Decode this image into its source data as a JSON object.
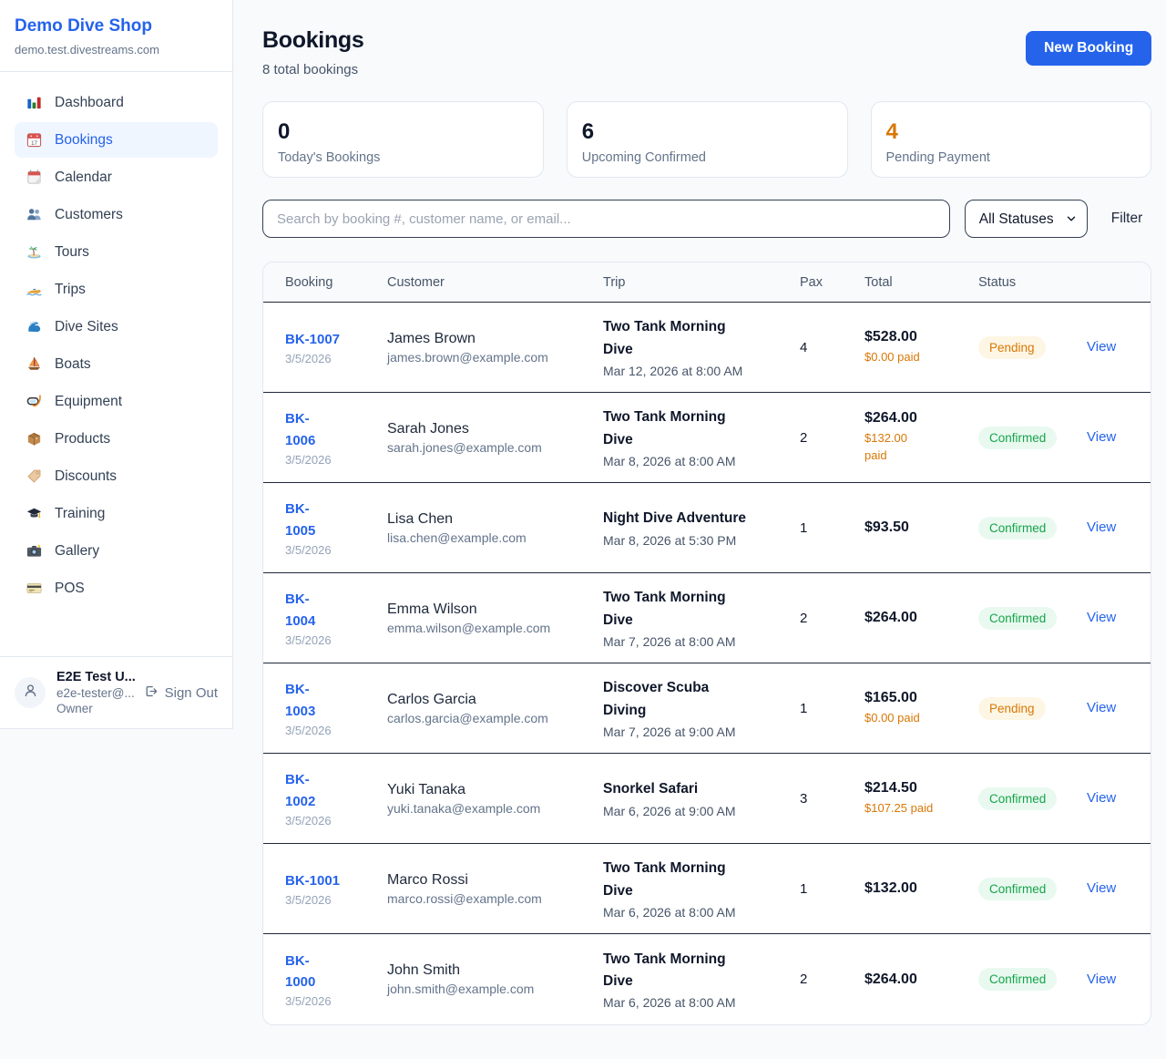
{
  "sidebar": {
    "shop_name": "Demo Dive Shop",
    "domain": "demo.test.divestreams.com",
    "items": [
      {
        "key": "dashboard",
        "label": "Dashboard",
        "active": false
      },
      {
        "key": "bookings",
        "label": "Bookings",
        "active": true
      },
      {
        "key": "calendar",
        "label": "Calendar",
        "active": false
      },
      {
        "key": "customers",
        "label": "Customers",
        "active": false
      },
      {
        "key": "tours",
        "label": "Tours",
        "active": false
      },
      {
        "key": "trips",
        "label": "Trips",
        "active": false
      },
      {
        "key": "dive-sites",
        "label": "Dive Sites",
        "active": false
      },
      {
        "key": "boats",
        "label": "Boats",
        "active": false
      },
      {
        "key": "equipment",
        "label": "Equipment",
        "active": false
      },
      {
        "key": "products",
        "label": "Products",
        "active": false
      },
      {
        "key": "discounts",
        "label": "Discounts",
        "active": false
      },
      {
        "key": "training",
        "label": "Training",
        "active": false
      },
      {
        "key": "gallery",
        "label": "Gallery",
        "active": false
      },
      {
        "key": "pos",
        "label": "POS",
        "active": false
      }
    ],
    "user": {
      "name": "E2E Test U...",
      "email": "e2e-tester@...",
      "role": "Owner",
      "sign_out_label": "Sign Out"
    }
  },
  "header": {
    "title": "Bookings",
    "subtitle": "8 total bookings",
    "new_booking_label": "New Booking"
  },
  "stats": [
    {
      "value": "0",
      "label": "Today's Bookings",
      "value_color": "#0F172A"
    },
    {
      "value": "6",
      "label": "Upcoming Confirmed",
      "value_color": "#0F172A"
    },
    {
      "value": "4",
      "label": "Pending Payment",
      "value_color": "#D97706"
    }
  ],
  "controls": {
    "search_placeholder": "Search by booking #, customer name, or email...",
    "status_filter_selected": "All Statuses",
    "filter_label": "Filter"
  },
  "table": {
    "headers": [
      "Booking",
      "Customer",
      "Trip",
      "Pax",
      "Total",
      "Status"
    ],
    "view_label": "View",
    "rows": [
      {
        "id": "BK-1007",
        "date": "3/5/2026",
        "customer": "James Brown",
        "email": "james.brown@example.com",
        "trip": "Two Tank Morning Dive",
        "trip_datetime": "Mar 12, 2026 at 8:00 AM",
        "pax": "4",
        "total": "$528.00",
        "paid": "$0.00 paid",
        "status": "Pending"
      },
      {
        "id": "BK-1006",
        "date": "3/5/2026",
        "customer": "Sarah Jones",
        "email": "sarah.jones@example.com",
        "trip": "Two Tank Morning Dive",
        "trip_datetime": "Mar 8, 2026 at 8:00 AM",
        "pax": "2",
        "total": "$264.00",
        "paid": "$132.00 paid",
        "status": "Confirmed"
      },
      {
        "id": "BK-1005",
        "date": "3/5/2026",
        "customer": "Lisa Chen",
        "email": "lisa.chen@example.com",
        "trip": "Night Dive Adventure",
        "trip_datetime": "Mar 8, 2026 at 5:30 PM",
        "pax": "1",
        "total": "$93.50",
        "paid": null,
        "status": "Confirmed"
      },
      {
        "id": "BK-1004",
        "date": "3/5/2026",
        "customer": "Emma Wilson",
        "email": "emma.wilson@example.com",
        "trip": "Two Tank Morning Dive",
        "trip_datetime": "Mar 7, 2026 at 8:00 AM",
        "pax": "2",
        "total": "$264.00",
        "paid": null,
        "status": "Confirmed"
      },
      {
        "id": "BK-1003",
        "date": "3/5/2026",
        "customer": "Carlos Garcia",
        "email": "carlos.garcia@example.com",
        "trip": "Discover Scuba Diving",
        "trip_datetime": "Mar 7, 2026 at 9:00 AM",
        "pax": "1",
        "total": "$165.00",
        "paid": "$0.00 paid",
        "status": "Pending"
      },
      {
        "id": "BK-1002",
        "date": "3/5/2026",
        "customer": "Yuki Tanaka",
        "email": "yuki.tanaka@example.com",
        "trip": "Snorkel Safari",
        "trip_datetime": "Mar 6, 2026 at 9:00 AM",
        "pax": "3",
        "total": "$214.50",
        "paid": "$107.25 paid",
        "status": "Confirmed"
      },
      {
        "id": "BK-1001",
        "date": "3/5/2026",
        "customer": "Marco Rossi",
        "email": "marco.rossi@example.com",
        "trip": "Two Tank Morning Dive",
        "trip_datetime": "Mar 6, 2026 at 8:00 AM",
        "pax": "1",
        "total": "$132.00",
        "paid": null,
        "status": "Confirmed"
      },
      {
        "id": "BK-1000",
        "date": "3/5/2026",
        "customer": "John Smith",
        "email": "john.smith@example.com",
        "trip": "Two Tank Morning Dive",
        "trip_datetime": "Mar 6, 2026 at 8:00 AM",
        "pax": "2",
        "total": "$264.00",
        "paid": null,
        "status": "Confirmed"
      }
    ]
  },
  "colors": {
    "accent": "#2563EB",
    "pending_text": "#D97706",
    "pending_bg": "#FEF6E4",
    "confirmed_text": "#16A34A",
    "confirmed_bg": "#E9F9F0",
    "paid_amount": "#D97706"
  }
}
